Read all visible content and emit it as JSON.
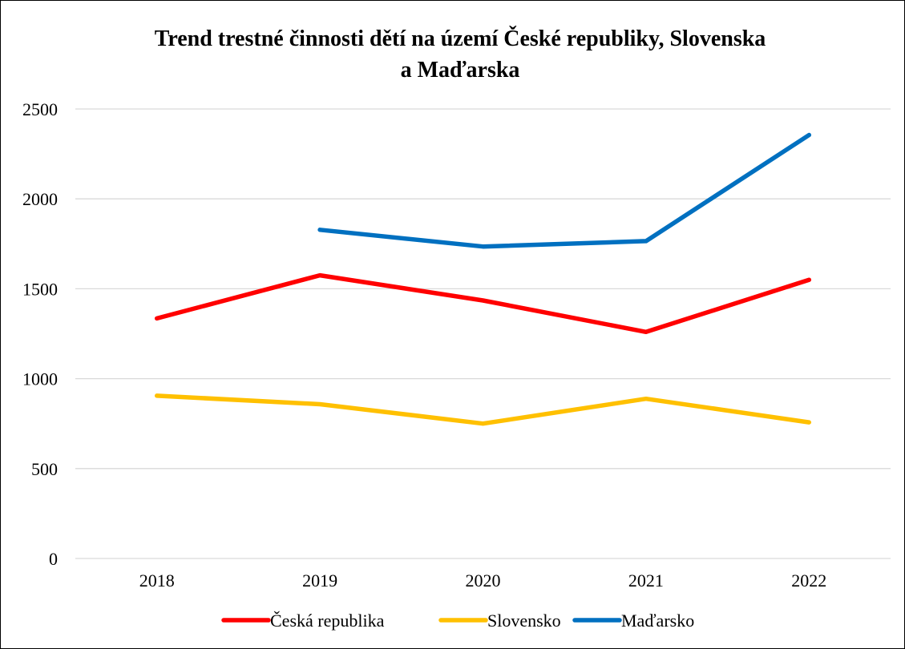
{
  "chart_data": {
    "type": "line",
    "title_lines": [
      "Trend trestné činnosti dětí na území České republiky, Slovenska",
      "a Maďarska"
    ],
    "categories": [
      "2018",
      "2019",
      "2020",
      "2021",
      "2022"
    ],
    "ylim": [
      0,
      2500
    ],
    "yticks": [
      "0",
      "500",
      "1000",
      "1500",
      "2000",
      "2500"
    ],
    "grid": true,
    "legend_position": "bottom",
    "series": [
      {
        "name": "Česká republika",
        "color": "#ff0000",
        "values": [
          1335,
          1575,
          1435,
          1260,
          1550
        ]
      },
      {
        "name": "Slovensko",
        "color": "#ffc000",
        "values": [
          905,
          858,
          750,
          888,
          757
        ]
      },
      {
        "name": "Maďarsko",
        "color": "#0070c0",
        "values": [
          null,
          1828,
          1735,
          1765,
          2355
        ]
      }
    ]
  }
}
